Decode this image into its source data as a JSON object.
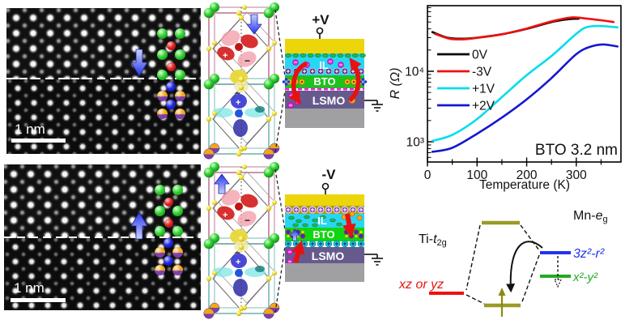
{
  "colors": {
    "green_atom": "#35d435",
    "red_atom": "#e32222",
    "blue_atom": "#2328e0",
    "orange_atom": "#f2a71b",
    "purple_atom": "#7d3fa8",
    "arrow_blue": "#2a35e8",
    "device_yellow": "#ecd60a",
    "device_cyan": "#28d6f4",
    "device_green": "#1ec21e",
    "device_green_bright": "#10d610",
    "lsmo_purple": "#665a8d",
    "substrate_gray": "#a0a0a3",
    "magenta": "#e826d8",
    "accent_red": "#e81111",
    "ti_level_red": "#ee1111",
    "mn_level_blue": "#2233ee",
    "mn_level_green": "#22aa22",
    "occupied_olive": "#8a8a10"
  },
  "stem_images": [
    {
      "scale_label": "1 nm",
      "arrow_direction": "down"
    },
    {
      "scale_label": "1 nm",
      "arrow_direction": "up"
    }
  ],
  "crystal": {
    "plus": "+",
    "minus": "−"
  },
  "devices": [
    {
      "terminal": "+V",
      "il_label": "IL",
      "bto_label": "BTO",
      "lsmo_label": "LSMO"
    },
    {
      "terminal": "-V",
      "il_label": "IL",
      "bto_label": "BTO",
      "lsmo_label": "LSMO"
    }
  ],
  "chart_data": {
    "type": "line",
    "title": "",
    "xlabel": "Temperature (K)",
    "ylabel": "R (Ω)",
    "yscale": "log",
    "xlim": [
      0,
      390
    ],
    "ylim": [
      500,
      85000
    ],
    "x_ticks": [
      0,
      100,
      200,
      300
    ],
    "x_minor_ticks": [
      50,
      150,
      250,
      350
    ],
    "y_tick_labels": [
      "10³",
      "10⁴"
    ],
    "y_tick_values": [
      1000,
      10000
    ],
    "annotation": "BTO 3.2 nm",
    "legend_location": "upper-left-inside",
    "series": [
      {
        "name": "0V",
        "color": "#000000",
        "x": [
          10,
          40,
          70,
          100,
          150,
          200,
          250,
          280,
          305
        ],
        "y": [
          36000,
          30000,
          29000,
          30000,
          33500,
          40000,
          50000,
          54500,
          56000
        ]
      },
      {
        "name": "-3V",
        "color": "#ee1111",
        "x": [
          15,
          45,
          75,
          110,
          150,
          200,
          250,
          290,
          320,
          350,
          375
        ],
        "y": [
          34000,
          29000,
          28500,
          30500,
          33500,
          40500,
          51000,
          58000,
          56000,
          53000,
          50000
        ]
      },
      {
        "name": "+1V",
        "color": "#00dcee",
        "x": [
          10,
          50,
          100,
          150,
          200,
          250,
          300,
          320,
          345,
          383
        ],
        "y": [
          1030,
          1250,
          2100,
          4300,
          8800,
          16500,
          34000,
          42000,
          44000,
          42000
        ]
      },
      {
        "name": "+2V",
        "color": "#1518cf",
        "x": [
          10,
          50,
          100,
          150,
          200,
          250,
          300,
          330,
          355,
          383
        ],
        "y": [
          720,
          820,
          1300,
          2200,
          4000,
          8000,
          17500,
          22500,
          24000,
          22500
        ]
      }
    ]
  },
  "energy_diagram": {
    "mn_label_pre": "Mn-",
    "mn_label_sym": "e",
    "mn_label_sub": "g",
    "ti_label_pre": "Ti-",
    "ti_label_sym": "t",
    "ti_label_sub": "2g",
    "xz_label": "xz or yz",
    "level_3z2_label": "3z²-r²",
    "level_x2y2_label": "x²-y²"
  }
}
